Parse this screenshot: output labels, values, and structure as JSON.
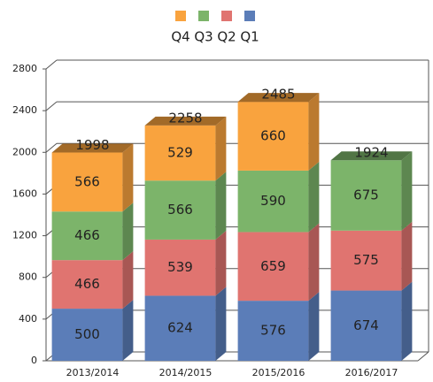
{
  "chart_data": {
    "type": "bar3d-stacked",
    "categories": [
      "2013/2014",
      "2014/2015",
      "2015/2016",
      "2016/2017"
    ],
    "series": [
      {
        "name": "Q1",
        "color": "#5b7db8",
        "values": [
          500,
          624,
          576,
          674
        ]
      },
      {
        "name": "Q2",
        "color": "#e07470",
        "values": [
          466,
          539,
          659,
          575
        ]
      },
      {
        "name": "Q3",
        "color": "#7cb46a",
        "values": [
          466,
          566,
          590,
          675
        ]
      },
      {
        "name": "Q4",
        "color": "#f9a33e",
        "values": [
          566,
          529,
          660,
          null
        ]
      }
    ],
    "totals": [
      1998,
      2258,
      2485,
      1924
    ],
    "ylim": [
      0,
      2800
    ],
    "yticks": [
      0,
      400,
      800,
      1200,
      1600,
      2000,
      2400,
      2800
    ],
    "grid": true,
    "legend": "top"
  }
}
